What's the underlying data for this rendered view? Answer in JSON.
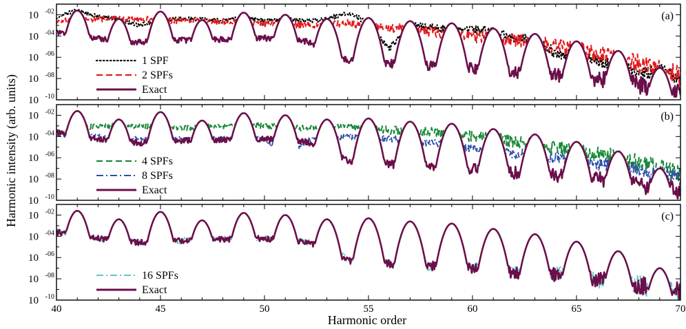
{
  "chart_data": [
    {
      "type": "line",
      "panel_tag": "(a)",
      "xlim": [
        40,
        70
      ],
      "yscale": "log",
      "ylim_exponent": [
        -10,
        -1
      ],
      "x_ticks": [
        "40",
        "45",
        "50",
        "55",
        "60",
        "65",
        "70"
      ],
      "x_tick_values": [
        40,
        45,
        50,
        55,
        60,
        65,
        70
      ],
      "y_tick_base": "10",
      "y_tick_exponents": [
        "-10",
        "-08",
        "-06",
        "-04",
        "-02"
      ],
      "y_tick_values": [
        -10,
        -8,
        -6,
        -4,
        -2
      ],
      "legend_position": "left",
      "series": [
        {
          "name": "1  SPF",
          "color": "#000000",
          "dash": "dotted",
          "floor": [
            [
              40,
              -2.2
            ],
            [
              41,
              -1.6
            ],
            [
              42,
              -2.2
            ],
            [
              43,
              -2.4
            ],
            [
              44,
              -3.0
            ],
            [
              45,
              -2.4
            ],
            [
              46,
              -2.4
            ],
            [
              47,
              -2.4
            ],
            [
              48,
              -2.6
            ],
            [
              49,
              -2.2
            ],
            [
              50,
              -2.6
            ],
            [
              51,
              -2.4
            ],
            [
              52,
              -2.6
            ],
            [
              53,
              -2.4
            ],
            [
              54,
              -1.8
            ],
            [
              55,
              -2.8
            ],
            [
              56,
              -5.2
            ],
            [
              57,
              -3.0
            ],
            [
              58,
              -3.2
            ],
            [
              59,
              -3.4
            ],
            [
              60,
              -3.4
            ],
            [
              61,
              -3.6
            ],
            [
              62,
              -4.2
            ],
            [
              63,
              -4.4
            ],
            [
              64,
              -5.6
            ],
            [
              65,
              -5.8
            ],
            [
              66,
              -6.4
            ],
            [
              67,
              -6.6
            ],
            [
              68,
              -7.6
            ],
            [
              69,
              -7.2
            ],
            [
              70,
              -8.0
            ]
          ],
          "noise": 0.35
        },
        {
          "name": "2  SPFs",
          "color": "#e31a1c",
          "dash": "dashed",
          "floor": [
            [
              40,
              -2.6
            ],
            [
              42,
              -2.4
            ],
            [
              44,
              -2.4
            ],
            [
              46,
              -2.6
            ],
            [
              48,
              -2.6
            ],
            [
              50,
              -2.8
            ],
            [
              52,
              -3.0
            ],
            [
              54,
              -2.8
            ],
            [
              56,
              -3.2
            ],
            [
              58,
              -3.6
            ],
            [
              60,
              -4.0
            ],
            [
              62,
              -4.4
            ],
            [
              64,
              -5.0
            ],
            [
              66,
              -5.6
            ],
            [
              68,
              -6.6
            ],
            [
              70,
              -7.8
            ]
          ],
          "noise": 0.5
        },
        {
          "name": "Exact",
          "color": "#6b0f4a",
          "dash": "solid",
          "floor": [
            [
              40,
              -3.6
            ],
            [
              42,
              -4.2
            ],
            [
              44,
              -4.6
            ],
            [
              46,
              -4.4
            ],
            [
              48,
              -4.3
            ],
            [
              50,
              -4.2
            ],
            [
              52,
              -4.5
            ],
            [
              53,
              -5.2
            ],
            [
              54,
              -6.3
            ],
            [
              56,
              -6.6
            ],
            [
              58,
              -6.8
            ],
            [
              60,
              -7.0
            ],
            [
              62,
              -7.4
            ],
            [
              64,
              -7.6
            ],
            [
              66,
              -8.0
            ],
            [
              68,
              -8.6
            ],
            [
              70,
              -9.2
            ]
          ],
          "noise": 0.45
        }
      ]
    },
    {
      "type": "line",
      "panel_tag": "(b)",
      "xlim": [
        40,
        70
      ],
      "yscale": "log",
      "ylim_exponent": [
        -10,
        -1
      ],
      "x_ticks": [
        "40",
        "45",
        "50",
        "55",
        "60",
        "65",
        "70"
      ],
      "x_tick_values": [
        40,
        45,
        50,
        55,
        60,
        65,
        70
      ],
      "y_tick_base": "10",
      "y_tick_exponents": [
        "-10",
        "-08",
        "-06",
        "-04",
        "-02"
      ],
      "y_tick_values": [
        -10,
        -8,
        -6,
        -4,
        -2
      ],
      "legend_position": "left",
      "series": [
        {
          "name": "4   SPFs",
          "color": "#1a8a3a",
          "dash": "dashed",
          "floor": [
            [
              40,
              -3.6
            ],
            [
              42,
              -3.0
            ],
            [
              44,
              -3.0
            ],
            [
              46,
              -3.2
            ],
            [
              48,
              -3.0
            ],
            [
              50,
              -3.0
            ],
            [
              52,
              -3.2
            ],
            [
              54,
              -3.0
            ],
            [
              56,
              -3.4
            ],
            [
              58,
              -3.6
            ],
            [
              60,
              -4.0
            ],
            [
              62,
              -4.4
            ],
            [
              64,
              -5.0
            ],
            [
              66,
              -5.6
            ],
            [
              68,
              -6.4
            ],
            [
              70,
              -7.6
            ]
          ],
          "noise": 0.45
        },
        {
          "name": "8   SPFs",
          "color": "#2b4fa8",
          "dash": "dashdot",
          "floor": [
            [
              40,
              -3.8
            ],
            [
              42,
              -4.0
            ],
            [
              44,
              -4.2
            ],
            [
              46,
              -4.2
            ],
            [
              48,
              -4.2
            ],
            [
              50,
              -4.2
            ],
            [
              51,
              -6.2
            ],
            [
              52,
              -4.4
            ],
            [
              54,
              -4.0
            ],
            [
              56,
              -4.2
            ],
            [
              58,
              -4.6
            ],
            [
              60,
              -5.2
            ],
            [
              62,
              -5.6
            ],
            [
              64,
              -6.0
            ],
            [
              66,
              -6.6
            ],
            [
              68,
              -7.2
            ],
            [
              70,
              -7.8
            ]
          ],
          "noise": 0.4
        },
        {
          "name": "Exact",
          "color": "#6b0f4a",
          "dash": "solid",
          "floor": [
            [
              40,
              -3.6
            ],
            [
              42,
              -4.2
            ],
            [
              44,
              -4.6
            ],
            [
              46,
              -4.4
            ],
            [
              48,
              -4.3
            ],
            [
              50,
              -4.2
            ],
            [
              52,
              -4.5
            ],
            [
              53,
              -5.2
            ],
            [
              54,
              -6.3
            ],
            [
              56,
              -6.6
            ],
            [
              58,
              -6.8
            ],
            [
              60,
              -7.0
            ],
            [
              62,
              -7.4
            ],
            [
              64,
              -7.6
            ],
            [
              66,
              -8.0
            ],
            [
              68,
              -8.6
            ],
            [
              70,
              -9.2
            ]
          ],
          "noise": 0.45
        }
      ]
    },
    {
      "type": "line",
      "panel_tag": "(c)",
      "xlim": [
        40,
        70
      ],
      "yscale": "log",
      "ylim_exponent": [
        -10,
        -1
      ],
      "x_ticks": [
        "40",
        "45",
        "50",
        "55",
        "60",
        "65",
        "70"
      ],
      "x_tick_values": [
        40,
        45,
        50,
        55,
        60,
        65,
        70
      ],
      "y_tick_base": "10",
      "y_tick_exponents": [
        "-10",
        "-08",
        "-06",
        "-04",
        "-02"
      ],
      "y_tick_values": [
        -10,
        -8,
        -6,
        -4,
        -2
      ],
      "legend_position": "bottom-left",
      "series": [
        {
          "name": "16 SPFs",
          "color": "#5fc4c4",
          "dash": "dashdot",
          "floor": [
            [
              40,
              -3.6
            ],
            [
              42,
              -4.2
            ],
            [
              44,
              -4.6
            ],
            [
              46,
              -4.4
            ],
            [
              48,
              -4.3
            ],
            [
              50,
              -4.2
            ],
            [
              52,
              -4.5
            ],
            [
              53,
              -5.2
            ],
            [
              54,
              -6.1
            ],
            [
              56,
              -6.6
            ],
            [
              58,
              -6.8
            ],
            [
              60,
              -7.0
            ],
            [
              62,
              -7.4
            ],
            [
              64,
              -7.6
            ],
            [
              66,
              -8.0
            ],
            [
              68,
              -8.6
            ],
            [
              70,
              -9.2
            ]
          ],
          "noise": 0.5
        },
        {
          "name": "Exact",
          "color": "#6b0f4a",
          "dash": "solid",
          "floor": [
            [
              40,
              -3.6
            ],
            [
              42,
              -4.2
            ],
            [
              44,
              -4.6
            ],
            [
              46,
              -4.4
            ],
            [
              48,
              -4.3
            ],
            [
              50,
              -4.2
            ],
            [
              52,
              -4.5
            ],
            [
              53,
              -5.2
            ],
            [
              54,
              -6.3
            ],
            [
              56,
              -6.6
            ],
            [
              58,
              -6.8
            ],
            [
              60,
              -7.0
            ],
            [
              62,
              -7.4
            ],
            [
              64,
              -7.6
            ],
            [
              66,
              -8.0
            ],
            [
              68,
              -8.6
            ],
            [
              70,
              -9.2
            ]
          ],
          "noise": 0.45
        }
      ]
    }
  ],
  "harmonic_peaks": [
    [
      41,
      -1.6
    ],
    [
      43,
      -2.4
    ],
    [
      45,
      -1.7
    ],
    [
      47,
      -2.5
    ],
    [
      49,
      -1.8
    ],
    [
      51,
      -2.0
    ],
    [
      53,
      -2.4
    ],
    [
      55,
      -2.3
    ],
    [
      57,
      -2.6
    ],
    [
      59,
      -2.8
    ],
    [
      61,
      -3.3
    ],
    [
      63,
      -3.8
    ],
    [
      65,
      -4.5
    ],
    [
      67,
      -5.4
    ],
    [
      69,
      -7.0
    ]
  ],
  "axes": {
    "xlabel": "Harmonic order",
    "ylabel": "Harmonic intensity (arb. units)"
  }
}
